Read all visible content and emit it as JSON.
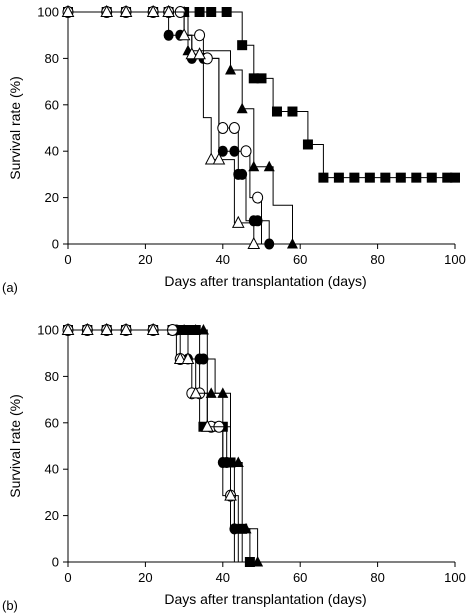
{
  "chart_data": [
    {
      "type": "line",
      "subtype": "kaplan-meier step",
      "panel_label": "(a)",
      "xlabel": "Days after transplantation (days)",
      "ylabel": "Survival rate (%)",
      "xlim": [
        0,
        100
      ],
      "ylim": [
        0,
        100
      ],
      "x_ticks": [
        0,
        20,
        40,
        60,
        80,
        100
      ],
      "y_ticks": [
        0,
        20,
        40,
        60,
        80,
        100
      ],
      "grid": false,
      "legend": "none",
      "series": [
        {
          "marker": "filled-square",
          "marker_times": [
            0,
            10,
            15,
            22,
            26,
            30,
            34,
            37,
            41,
            45,
            48,
            50,
            54,
            58,
            62,
            66,
            70,
            74,
            78,
            82,
            86,
            90,
            94,
            98,
            100
          ],
          "step_times": [
            45,
            48,
            53,
            62,
            66
          ],
          "step_values": [
            85.7,
            71.4,
            57.1,
            42.9,
            28.6
          ],
          "final_time": 100
        },
        {
          "marker": "filled-triangle",
          "marker_times": [
            0,
            10,
            15,
            22,
            26,
            30,
            31,
            42,
            45,
            48,
            52,
            58
          ],
          "step_times": [
            31,
            42,
            45,
            48,
            53,
            58
          ],
          "step_values": [
            83.3,
            75.0,
            58.3,
            33.3,
            16.7,
            0
          ],
          "final_time": 58
        },
        {
          "marker": "filled-circle",
          "marker_times": [
            0,
            10,
            15,
            22,
            26,
            29,
            32,
            35,
            40,
            43,
            44,
            45,
            48,
            49,
            52
          ],
          "step_times": [
            26,
            30,
            32,
            39,
            42,
            44,
            46,
            48,
            52
          ],
          "step_values": [
            90,
            90,
            80,
            40,
            40,
            30,
            10,
            10,
            0
          ],
          "final_time": 52
        },
        {
          "marker": "open-circle",
          "marker_times": [
            0,
            10,
            15,
            22,
            26,
            29,
            34,
            36,
            40,
            43,
            46,
            49
          ],
          "step_times": [
            30,
            35,
            39,
            44,
            47,
            50
          ],
          "step_values": [
            90,
            80,
            50,
            40,
            20,
            0
          ],
          "final_time": 50
        },
        {
          "marker": "open-triangle",
          "marker_times": [
            0,
            10,
            15,
            22,
            26,
            30,
            32,
            34,
            37,
            39,
            44,
            48
          ],
          "step_times": [
            30,
            32,
            35,
            37,
            43,
            48
          ],
          "step_values": [
            90,
            81.8,
            54.5,
            36.4,
            9.1,
            0
          ],
          "final_time": 48
        }
      ]
    },
    {
      "type": "line",
      "subtype": "kaplan-meier step",
      "panel_label": "(b)",
      "xlabel": "Days after transplantation (days)",
      "ylabel": "Survival rate (%)",
      "xlim": [
        0,
        100
      ],
      "ylim": [
        0,
        100
      ],
      "x_ticks": [
        0,
        20,
        40,
        60,
        80,
        100
      ],
      "y_ticks": [
        0,
        20,
        40,
        60,
        80,
        100
      ],
      "grid": false,
      "legend": "none",
      "series": [
        {
          "marker": "filled-square",
          "marker_times": [
            0,
            5,
            10,
            15,
            22,
            27,
            29,
            31,
            33,
            35,
            38,
            40,
            42,
            45,
            47
          ],
          "step_times": [
            34,
            39,
            41,
            43,
            47
          ],
          "step_values": [
            58.3,
            58.3,
            42.9,
            14.3,
            0
          ],
          "final_time": 47
        },
        {
          "marker": "filled-triangle",
          "marker_times": [
            0,
            5,
            10,
            15,
            22,
            27,
            30,
            33,
            35,
            37,
            40,
            42,
            44,
            46,
            49
          ],
          "step_times": [
            36,
            42,
            45,
            49
          ],
          "step_values": [
            72.7,
            42.9,
            14.3,
            0
          ],
          "final_time": 49
        },
        {
          "marker": "filled-circle",
          "marker_times": [
            0,
            5,
            10,
            15,
            22,
            28,
            31,
            34,
            35,
            40,
            41,
            43
          ],
          "step_times": [
            31,
            34,
            38,
            40,
            42,
            45
          ],
          "step_values": [
            87.5,
            87.5,
            72.7,
            42.9,
            14.3,
            0
          ],
          "final_time": 45
        },
        {
          "marker": "open-circle",
          "marker_times": [
            0,
            5,
            10,
            15,
            22,
            27,
            29,
            32,
            34,
            37,
            39,
            42
          ],
          "step_times": [
            28,
            32,
            36,
            40,
            43
          ],
          "step_values": [
            87.5,
            72.7,
            58.3,
            28.6,
            0
          ],
          "final_time": 43
        },
        {
          "marker": "open-triangle",
          "marker_times": [
            0,
            5,
            10,
            15,
            22,
            29,
            31,
            33,
            36,
            42
          ],
          "step_times": [
            29,
            33,
            36,
            39,
            42,
            44
          ],
          "step_values": [
            87.5,
            72.7,
            58.3,
            58.3,
            28.6,
            0
          ],
          "final_time": 44
        }
      ]
    }
  ]
}
